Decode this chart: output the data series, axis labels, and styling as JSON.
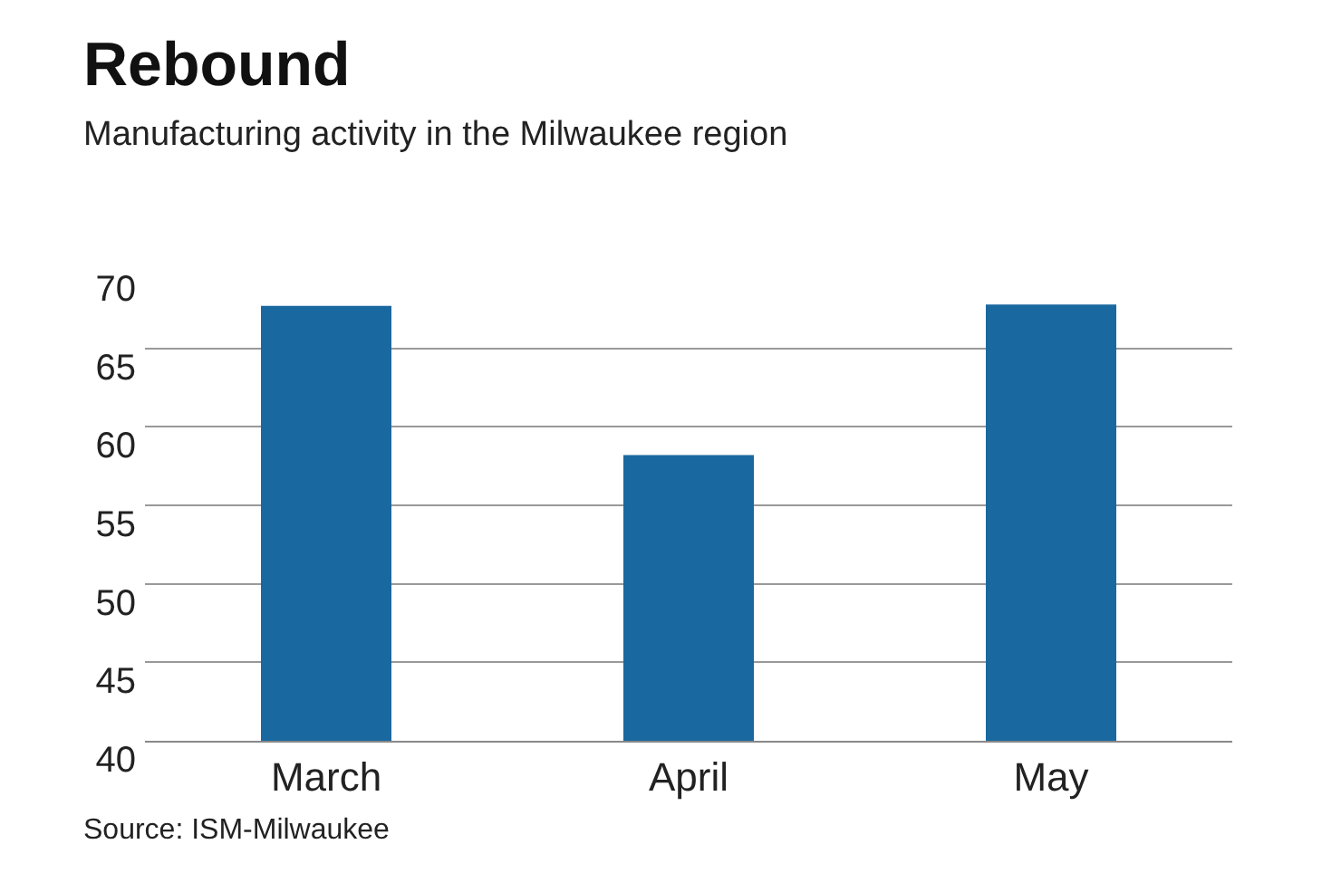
{
  "chart_data": {
    "type": "bar",
    "title": "Rebound",
    "subtitle": "Manufacturing activity in the Milwaukee region",
    "categories": [
      "March",
      "April",
      "May"
    ],
    "values": [
      67.7,
      58.2,
      67.8
    ],
    "color": "#1a68a0",
    "ylim": [
      40,
      70
    ],
    "yticks": [
      40,
      45,
      50,
      55,
      60,
      65,
      70
    ],
    "grid": "y",
    "annotations": [
      "Source: ISM-Milwaukee"
    ]
  }
}
